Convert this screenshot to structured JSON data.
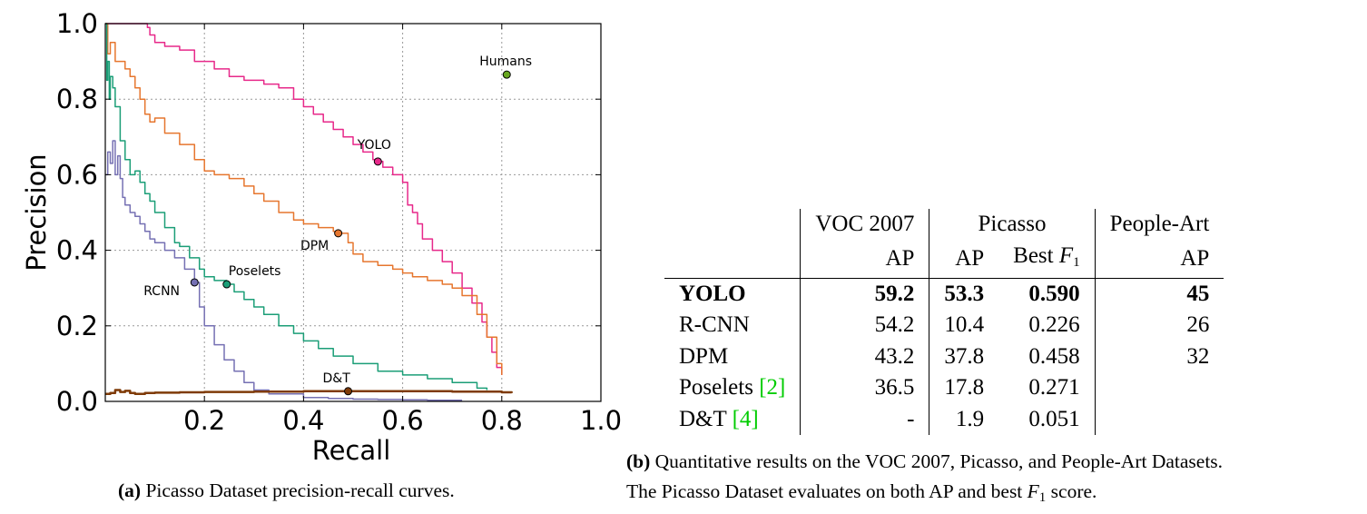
{
  "chart_data": {
    "type": "line",
    "xlabel": "Recall",
    "ylabel": "Precision",
    "xlim": [
      0,
      1.0
    ],
    "ylim": [
      0,
      1.0
    ],
    "xticks": [
      "0.2",
      "0.4",
      "0.6",
      "0.8",
      "1.0"
    ],
    "yticks": [
      "0.0",
      "0.2",
      "0.4",
      "0.6",
      "0.8",
      "1.0"
    ],
    "grid": true,
    "series": [
      {
        "name": "YOLO",
        "color": "#e7298a",
        "marker": [
          0.55,
          0.635
        ],
        "x": [
          0.0,
          0.08,
          0.085,
          0.09,
          0.1,
          0.12,
          0.15,
          0.18,
          0.2,
          0.22,
          0.25,
          0.28,
          0.3,
          0.32,
          0.35,
          0.38,
          0.4,
          0.42,
          0.44,
          0.46,
          0.48,
          0.5,
          0.52,
          0.54,
          0.55,
          0.56,
          0.58,
          0.6,
          0.61,
          0.62,
          0.63,
          0.64,
          0.66,
          0.68,
          0.7,
          0.72,
          0.74,
          0.76,
          0.77,
          0.78,
          0.79,
          0.8
        ],
        "y": [
          1.0,
          1.0,
          0.99,
          0.97,
          0.95,
          0.94,
          0.93,
          0.9,
          0.9,
          0.88,
          0.86,
          0.85,
          0.85,
          0.84,
          0.83,
          0.8,
          0.78,
          0.76,
          0.74,
          0.72,
          0.7,
          0.68,
          0.66,
          0.64,
          0.635,
          0.62,
          0.6,
          0.58,
          0.52,
          0.5,
          0.47,
          0.43,
          0.4,
          0.37,
          0.34,
          0.3,
          0.26,
          0.21,
          0.17,
          0.13,
          0.09,
          0.07
        ]
      },
      {
        "name": "DPM",
        "color": "#e6762e",
        "marker": [
          0.47,
          0.445
        ],
        "x": [
          0.0,
          0.005,
          0.01,
          0.02,
          0.04,
          0.05,
          0.06,
          0.07,
          0.08,
          0.09,
          0.1,
          0.12,
          0.15,
          0.18,
          0.2,
          0.22,
          0.25,
          0.28,
          0.3,
          0.32,
          0.35,
          0.38,
          0.4,
          0.43,
          0.46,
          0.47,
          0.49,
          0.5,
          0.52,
          0.55,
          0.58,
          0.6,
          0.62,
          0.65,
          0.68,
          0.7,
          0.72,
          0.75,
          0.77,
          0.79,
          0.8
        ],
        "y": [
          1.0,
          0.92,
          0.95,
          0.9,
          0.88,
          0.86,
          0.83,
          0.8,
          0.76,
          0.74,
          0.75,
          0.71,
          0.68,
          0.64,
          0.61,
          0.6,
          0.59,
          0.57,
          0.55,
          0.53,
          0.5,
          0.48,
          0.47,
          0.46,
          0.45,
          0.445,
          0.42,
          0.39,
          0.37,
          0.36,
          0.35,
          0.34,
          0.33,
          0.32,
          0.31,
          0.3,
          0.28,
          0.23,
          0.17,
          0.1,
          0.07
        ]
      },
      {
        "name": "Poselets",
        "color": "#1b9e77",
        "marker": [
          0.245,
          0.31
        ],
        "x": [
          0.0,
          0.003,
          0.005,
          0.008,
          0.01,
          0.015,
          0.02,
          0.03,
          0.04,
          0.05,
          0.06,
          0.07,
          0.08,
          0.09,
          0.1,
          0.12,
          0.14,
          0.15,
          0.17,
          0.19,
          0.2,
          0.22,
          0.245,
          0.26,
          0.28,
          0.3,
          0.32,
          0.35,
          0.38,
          0.4,
          0.43,
          0.46,
          0.5,
          0.55,
          0.6,
          0.65,
          0.7,
          0.75,
          0.77
        ],
        "y": [
          1.0,
          0.85,
          0.9,
          0.8,
          0.86,
          0.83,
          0.78,
          0.69,
          0.64,
          0.6,
          0.61,
          0.58,
          0.55,
          0.53,
          0.5,
          0.46,
          0.42,
          0.41,
          0.38,
          0.35,
          0.33,
          0.32,
          0.31,
          0.29,
          0.27,
          0.25,
          0.23,
          0.2,
          0.18,
          0.16,
          0.14,
          0.12,
          0.1,
          0.08,
          0.07,
          0.06,
          0.05,
          0.035,
          0.03
        ]
      },
      {
        "name": "RCNN",
        "color": "#7570b3",
        "marker": [
          0.18,
          0.315
        ],
        "x": [
          0.0,
          0.005,
          0.01,
          0.015,
          0.02,
          0.025,
          0.03,
          0.035,
          0.04,
          0.05,
          0.06,
          0.07,
          0.08,
          0.09,
          0.1,
          0.12,
          0.14,
          0.16,
          0.18,
          0.19,
          0.2,
          0.22,
          0.24,
          0.26,
          0.28,
          0.3,
          0.33,
          0.36,
          0.4,
          0.45,
          0.5,
          0.55,
          0.6,
          0.65,
          0.7,
          0.72
        ],
        "y": [
          0.6,
          0.66,
          0.63,
          0.69,
          0.6,
          0.65,
          0.59,
          0.54,
          0.52,
          0.5,
          0.49,
          0.47,
          0.45,
          0.43,
          0.42,
          0.4,
          0.38,
          0.35,
          0.315,
          0.25,
          0.2,
          0.15,
          0.11,
          0.08,
          0.05,
          0.03,
          0.02,
          0.02,
          0.01,
          0.008,
          0.006,
          0.005,
          0.004,
          0.003,
          0.003,
          0.003
        ]
      },
      {
        "name": "D&T",
        "color": "#7f3b08",
        "marker": [
          0.49,
          0.027
        ],
        "x": [
          0.0,
          0.01,
          0.02,
          0.03,
          0.04,
          0.05,
          0.06,
          0.08,
          0.1,
          0.15,
          0.2,
          0.3,
          0.4,
          0.5,
          0.6,
          0.7,
          0.8,
          0.82
        ],
        "y": [
          0.02,
          0.022,
          0.03,
          0.025,
          0.028,
          0.022,
          0.02,
          0.022,
          0.023,
          0.024,
          0.025,
          0.026,
          0.027,
          0.027,
          0.027,
          0.026,
          0.024,
          0.022
        ]
      },
      {
        "name": "Humans",
        "color": "#66a61e",
        "marker": [
          0.81,
          0.865
        ]
      }
    ]
  },
  "captions": {
    "a_label": "(a)",
    "a_text": " Picasso Dataset precision-recall curves.",
    "b_label": "(b)",
    "b_line1": " Quantitative results on the VOC 2007, Picasso, and People-Art Datasets.",
    "b_line2_pre": "The Picasso Dataset evaluates on both AP and best ",
    "b_f": "F",
    "b_sub": "1",
    "b_line2_post": " score."
  },
  "table": {
    "header1": {
      "voc": "VOC 2007",
      "picasso": "Picasso",
      "people_art": "People-Art"
    },
    "header2": {
      "voc_ap": "AP",
      "picasso_ap": "AP",
      "best_prefix": "Best ",
      "best_f": "F",
      "best_sub": "1",
      "pa_ap": "AP"
    },
    "rows": [
      {
        "name": "YOLO",
        "cite": "",
        "voc_ap": "59.2",
        "picasso_ap": "53.3",
        "best_f1": "0.590",
        "pa_ap": "45"
      },
      {
        "name": "R-CNN",
        "cite": "",
        "voc_ap": "54.2",
        "picasso_ap": "10.4",
        "best_f1": "0.226",
        "pa_ap": "26"
      },
      {
        "name": "DPM",
        "cite": "",
        "voc_ap": "43.2",
        "picasso_ap": "37.8",
        "best_f1": "0.458",
        "pa_ap": "32"
      },
      {
        "name": "Poselets ",
        "cite": "[2]",
        "voc_ap": "36.5",
        "picasso_ap": "17.8",
        "best_f1": "0.271",
        "pa_ap": ""
      },
      {
        "name": "D&T ",
        "cite": "[4]",
        "voc_ap": "-",
        "picasso_ap": "1.9",
        "best_f1": "0.051",
        "pa_ap": ""
      }
    ]
  }
}
